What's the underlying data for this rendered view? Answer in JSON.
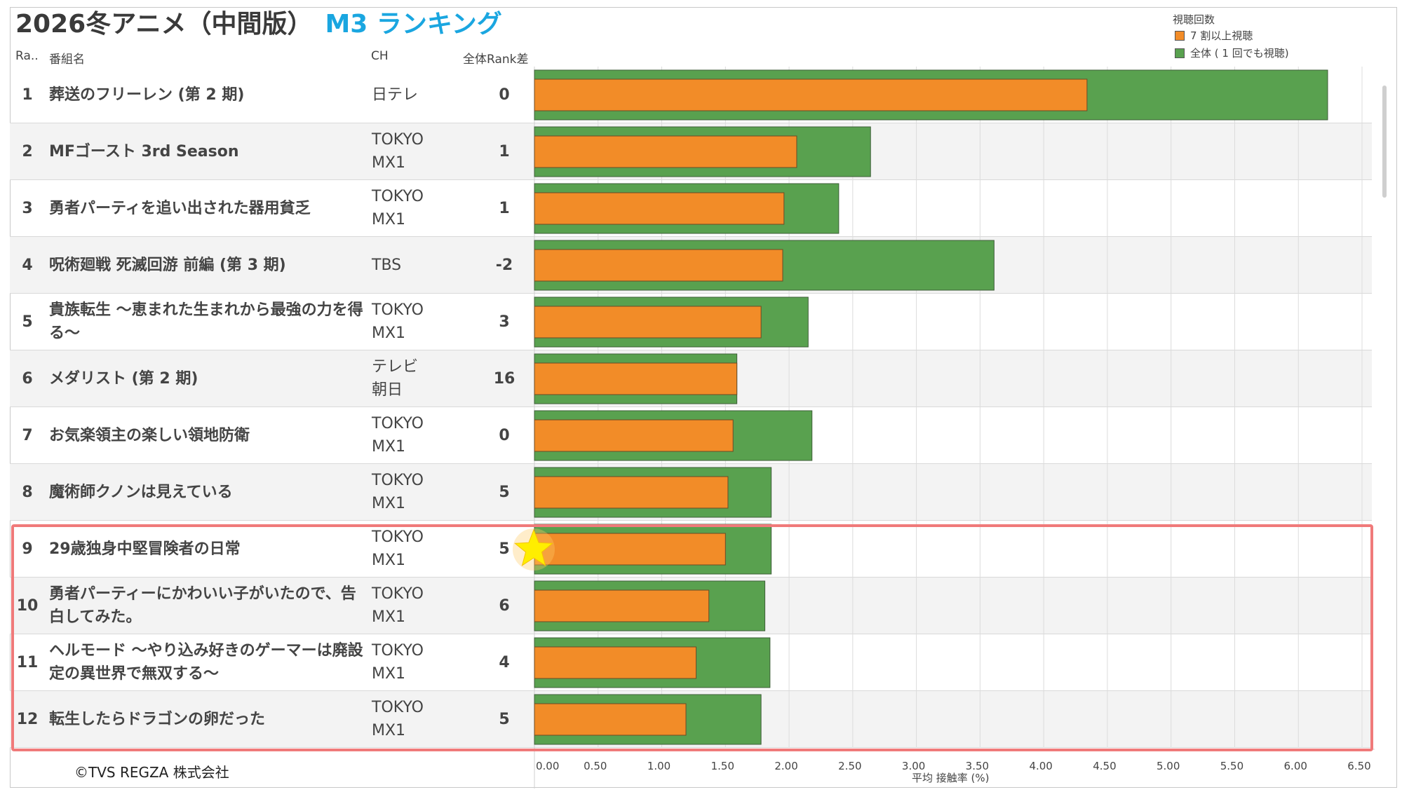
{
  "title": {
    "main": "2026冬アニメ（中間版）",
    "sub": "M3 ランキング"
  },
  "headers": {
    "rank": "Ra..",
    "name": "番組名",
    "ch": "CH",
    "diff": "全体Rank差"
  },
  "legend": {
    "title": "視聴回数",
    "items": [
      {
        "label": "7 割以上視聴",
        "color": "#f28c28"
      },
      {
        "label": "全体 ( 1 回でも視聴)",
        "color": "#59a14f"
      }
    ]
  },
  "rows": [
    {
      "rank": "1",
      "name": "葬送のフリーレン (第 2 期)",
      "ch": "日テレ",
      "diff": "0"
    },
    {
      "rank": "2",
      "name": "MFゴースト 3rd Season",
      "ch": "TOKYO MX1",
      "diff": "1"
    },
    {
      "rank": "3",
      "name": "勇者パーティを追い出された器用貧乏",
      "ch": "TOKYO MX1",
      "diff": "1"
    },
    {
      "rank": "4",
      "name": "呪術廻戦 死滅回游 前編 (第 3 期)",
      "ch": "TBS",
      "diff": "-2"
    },
    {
      "rank": "5",
      "name": "貴族転生 ～恵まれた生まれから最強の力を得る～",
      "ch": "TOKYO MX1",
      "diff": "3"
    },
    {
      "rank": "6",
      "name": "メダリスト (第 2 期)",
      "ch": "テレビ朝日",
      "diff": "16"
    },
    {
      "rank": "7",
      "name": "お気楽領主の楽しい領地防衛",
      "ch": "TOKYO MX1",
      "diff": "0"
    },
    {
      "rank": "8",
      "name": "魔術師クノンは見えている",
      "ch": "TOKYO MX1",
      "diff": "5"
    },
    {
      "rank": "9",
      "name": "29歳独身中堅冒険者の日常",
      "ch": "TOKYO MX1",
      "diff": "5"
    },
    {
      "rank": "10",
      "name": "勇者パーティーにかわいい子がいたので、告白してみた。",
      "ch": "TOKYO MX1",
      "diff": "6"
    },
    {
      "rank": "11",
      "name": "ヘルモード ～やり込み好きのゲーマーは廃設定の異世界で無双する～",
      "ch": "TOKYO MX1",
      "diff": "4"
    },
    {
      "rank": "12",
      "name": "転生したらドラゴンの卵だった",
      "ch": "TOKYO MX1",
      "diff": "5"
    }
  ],
  "chart_data": {
    "type": "bar",
    "orientation": "horizontal",
    "xlabel": "平均 接触率 (%)",
    "xlim": [
      0,
      6.5
    ],
    "x_ticks": [
      "0.00",
      "0.50",
      "1.00",
      "1.50",
      "2.00",
      "2.50",
      "3.00",
      "3.50",
      "4.00",
      "4.50",
      "5.00",
      "5.50",
      "6.00",
      "6.50"
    ],
    "grid": true,
    "legend_position": "top-right",
    "categories": [
      "1",
      "2",
      "3",
      "4",
      "5",
      "6",
      "7",
      "8",
      "9",
      "10",
      "11",
      "12"
    ],
    "series": [
      {
        "name": "全体 ( 1 回でも視聴)",
        "color": "#59a14f",
        "values": [
          6.23,
          2.64,
          2.39,
          3.61,
          2.15,
          1.59,
          2.18,
          1.86,
          1.86,
          1.81,
          1.85,
          1.78
        ]
      },
      {
        "name": "7 割以上視聴",
        "color": "#f28c28",
        "values": [
          4.34,
          2.06,
          1.96,
          1.95,
          1.78,
          1.59,
          1.56,
          1.52,
          1.5,
          1.37,
          1.27,
          1.19
        ]
      }
    ],
    "highlight_ranks": [
      "9",
      "10",
      "11",
      "12"
    ],
    "marker": {
      "rank": "9",
      "shape": "star",
      "color": "#ffee00"
    }
  },
  "footer": {
    "copyright": "©TVS REGZA 株式会社"
  }
}
